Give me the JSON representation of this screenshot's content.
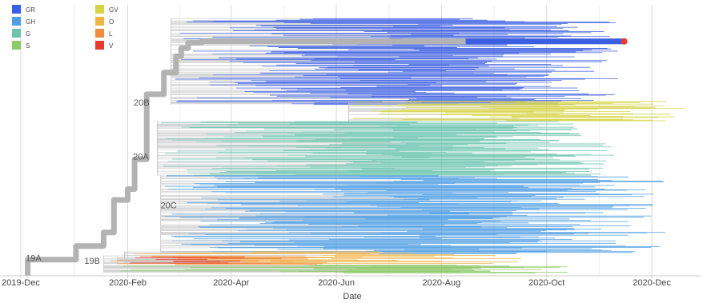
{
  "chart_data": {
    "type": "phylogenetic-tree",
    "xlabel": "Date",
    "x_ticks": [
      "2019-Dec",
      "2020-Feb",
      "2020-Apr",
      "2020-Jun",
      "2020-Aug",
      "2020-Oct",
      "2020-Dec"
    ],
    "x_range": [
      "2019-12-01",
      "2020-12-20"
    ],
    "grid": "vertical",
    "legend_position": "top-left",
    "legend": [
      {
        "name": "GR",
        "color": "#3c5ee0"
      },
      {
        "name": "GH",
        "color": "#4f9ee3"
      },
      {
        "name": "G",
        "color": "#6fc4b0"
      },
      {
        "name": "S",
        "color": "#8dc96a"
      },
      {
        "name": "GV",
        "color": "#d6d444"
      },
      {
        "name": "O",
        "color": "#f0b445"
      },
      {
        "name": "L",
        "color": "#f08a3c"
      },
      {
        "name": "V",
        "color": "#e83a2c"
      }
    ],
    "clade_labels": [
      {
        "name": "19A",
        "date": "2019-12-15"
      },
      {
        "name": "19B",
        "date": "2020-01-18"
      },
      {
        "name": "20A",
        "date": "2020-02-05"
      },
      {
        "name": "20B",
        "date": "2020-02-12"
      },
      {
        "name": "20C",
        "date": "2020-02-21"
      }
    ],
    "clades": [
      {
        "color": "GR",
        "start": "2020-02-28",
        "end": "2020-11-15",
        "band": [
          0.05,
          0.37
        ],
        "lines": 120
      },
      {
        "color": "GV",
        "start": "2020-06-10",
        "end": "2020-12-20",
        "band": [
          0.355,
          0.43
        ],
        "lines": 30
      },
      {
        "color": "G",
        "start": "2020-02-20",
        "end": "2020-11-10",
        "band": [
          0.43,
          0.63
        ],
        "lines": 90
      },
      {
        "color": "GH",
        "start": "2020-02-22",
        "end": "2020-12-10",
        "band": [
          0.63,
          0.92
        ],
        "lines": 120
      },
      {
        "color": "L",
        "start": "2020-01-20",
        "end": "2020-06-05",
        "band": [
          0.925,
          0.96
        ],
        "lines": 14
      },
      {
        "color": "O",
        "start": "2020-02-01",
        "end": "2020-09-20",
        "band": [
          0.91,
          0.955
        ],
        "lines": 14
      },
      {
        "color": "S",
        "start": "2020-01-20",
        "end": "2020-10-25",
        "band": [
          0.96,
          0.99
        ],
        "lines": 16
      },
      {
        "color": "V",
        "start": "2020-01-28",
        "end": "2020-04-15",
        "band": [
          0.93,
          0.955
        ],
        "lines": 6
      }
    ],
    "highlighted_path": [
      {
        "date": "2019-12-05",
        "y": 1.0
      },
      {
        "date": "2019-12-05",
        "y": 0.94
      },
      {
        "date": "2020-01-02",
        "y": 0.94
      },
      {
        "date": "2020-01-02",
        "y": 0.89
      },
      {
        "date": "2020-01-18",
        "y": 0.89
      },
      {
        "date": "2020-01-18",
        "y": 0.84
      },
      {
        "date": "2020-01-24",
        "y": 0.84
      },
      {
        "date": "2020-01-24",
        "y": 0.72
      },
      {
        "date": "2020-02-01",
        "y": 0.72
      },
      {
        "date": "2020-02-01",
        "y": 0.68
      },
      {
        "date": "2020-02-05",
        "y": 0.68
      },
      {
        "date": "2020-02-05",
        "y": 0.6
      },
      {
        "date": "2020-02-05",
        "y": 0.57
      },
      {
        "date": "2020-02-12",
        "y": 0.57
      },
      {
        "date": "2020-02-12",
        "y": 0.33
      },
      {
        "date": "2020-02-22",
        "y": 0.33
      },
      {
        "date": "2020-02-22",
        "y": 0.25
      },
      {
        "date": "2020-02-29",
        "y": 0.25
      },
      {
        "date": "2020-02-29",
        "y": 0.19
      },
      {
        "date": "2020-03-03",
        "y": 0.19
      },
      {
        "date": "2020-03-03",
        "y": 0.16
      },
      {
        "date": "2020-03-07",
        "y": 0.16
      },
      {
        "date": "2020-03-07",
        "y": 0.14
      },
      {
        "date": "2020-03-15",
        "y": 0.14
      },
      {
        "date": "2020-03-15",
        "y": 0.135
      },
      {
        "date": "2020-08-15",
        "y": 0.135
      },
      {
        "date": "2020-11-15",
        "y": 0.135
      }
    ],
    "highlighted_tip": {
      "date": "2020-11-15",
      "y": 0.135,
      "color": "#e83a2c"
    }
  }
}
